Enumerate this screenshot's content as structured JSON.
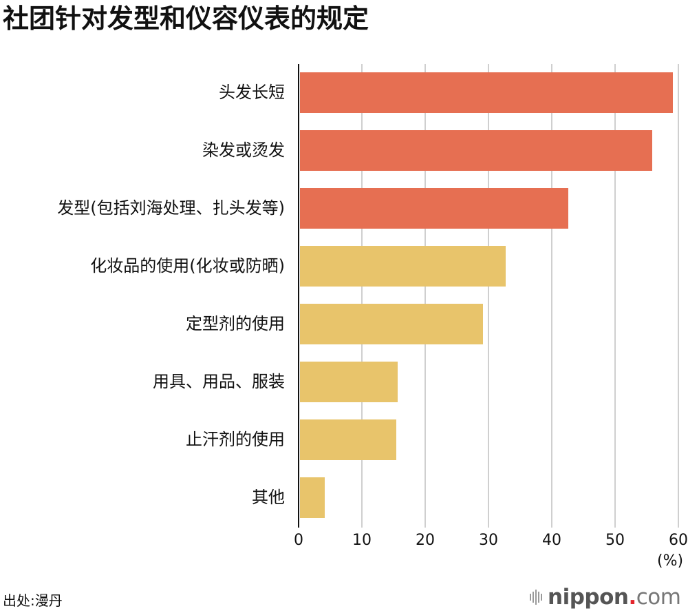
{
  "title": "社团针对发型和仪容仪表的规定",
  "source": "出处:漫丹",
  "logo": {
    "prefix": "nippon",
    "dot": ".",
    "suffix": "com"
  },
  "colors": {
    "hair": "#e66f52",
    "other": "#e8c46b",
    "grid": "#cfcfcf",
    "axis": "#111111",
    "logo_dot": "#e3242b"
  },
  "chart_data": {
    "type": "bar",
    "orientation": "horizontal",
    "title": "社团针对发型和仪容仪表的规定",
    "xlabel": "(%)",
    "ylabel": "",
    "xlim": [
      0,
      60
    ],
    "xticks": [
      0,
      10,
      20,
      30,
      40,
      50,
      60
    ],
    "grid": true,
    "legend": null,
    "categories": [
      "头发长短",
      "染发或烫发",
      "发型(包括刘海处理、扎头发等)",
      "化妆品的使用(化妆或防晒)",
      "定型剂的使用",
      "用具、用品、服装",
      "止汗剂的使用",
      "其他"
    ],
    "values": [
      59.0,
      55.8,
      42.5,
      32.6,
      29.0,
      15.5,
      15.3,
      4.0
    ],
    "bar_colors": [
      "#e66f52",
      "#e66f52",
      "#e66f52",
      "#e8c46b",
      "#e8c46b",
      "#e8c46b",
      "#e8c46b",
      "#e8c46b"
    ],
    "source": "出处:漫丹"
  },
  "axis": {
    "tick_labels": [
      "0",
      "10",
      "20",
      "30",
      "40",
      "50",
      "60"
    ],
    "unit": "(%)"
  }
}
